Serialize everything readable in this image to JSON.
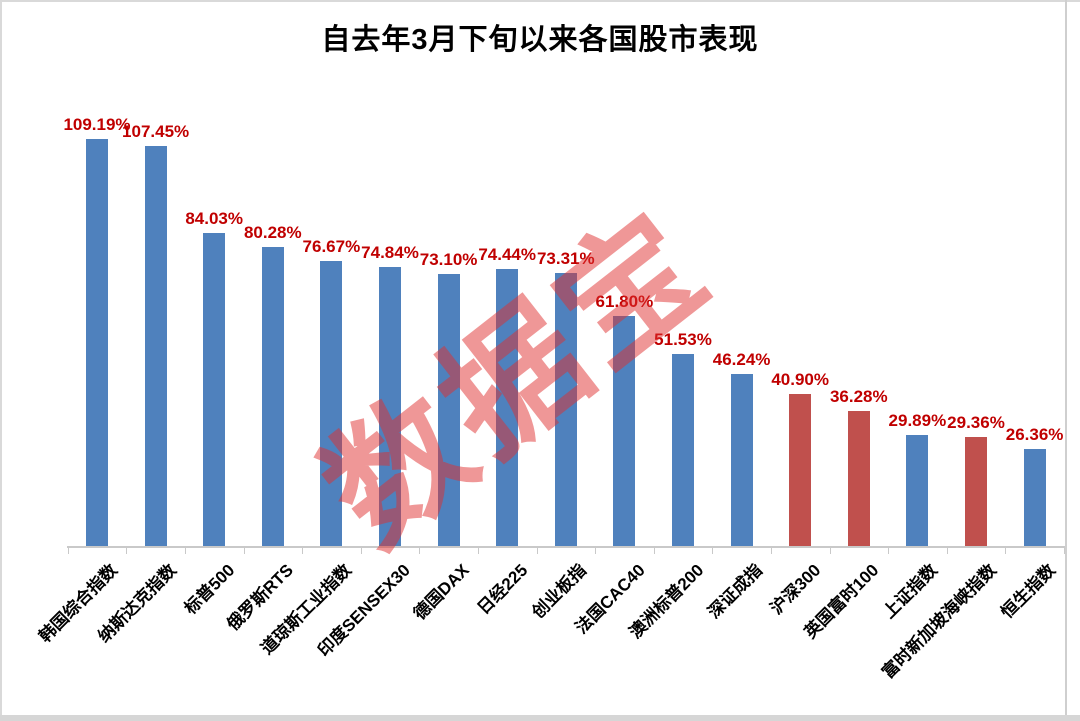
{
  "title": "自去年3月下旬以来各国股市表现",
  "watermark_text": "数据宝",
  "colors": {
    "bar_blue": "#4f81bd",
    "bar_red": "#c0504d",
    "value_label_red": "#c00000",
    "axis_gray": "#c9c9c9"
  },
  "chart_data": {
    "type": "bar",
    "title": "自去年3月下旬以来各国股市表现",
    "xlabel": "",
    "ylabel": "",
    "ylim": [
      0,
      120
    ],
    "grid": false,
    "legend_position": "none",
    "value_unit": "%",
    "categories": [
      "韩国综合指数",
      "纳斯达克指数",
      "标普500",
      "俄罗斯RTS",
      "道琼斯工业指数",
      "印度SENSEX30",
      "德国DAX",
      "日经225",
      "创业板指",
      "法国CAC40",
      "澳洲标普200",
      "深证成指",
      "沪深300",
      "英国富时100",
      "上证指数",
      "富时新加坡海峡指数",
      "恒生指数"
    ],
    "values": [
      109.19,
      107.45,
      84.03,
      80.28,
      76.67,
      74.84,
      73.1,
      74.44,
      73.31,
      61.8,
      51.53,
      46.24,
      40.9,
      36.28,
      29.89,
      29.36,
      26.36
    ],
    "value_labels": [
      "109.19%",
      "107.45%",
      "84.03%",
      "80.28%",
      "76.67%",
      "74.84%",
      "73.10%",
      "74.44%",
      "73.31%",
      "61.80%",
      "51.53%",
      "46.24%",
      "40.90%",
      "36.28%",
      "29.89%",
      "29.36%",
      "26.36%"
    ],
    "bar_colors": [
      "blue",
      "blue",
      "blue",
      "blue",
      "blue",
      "blue",
      "blue",
      "blue",
      "blue",
      "blue",
      "blue",
      "blue",
      "red",
      "red",
      "blue",
      "red",
      "blue"
    ]
  }
}
